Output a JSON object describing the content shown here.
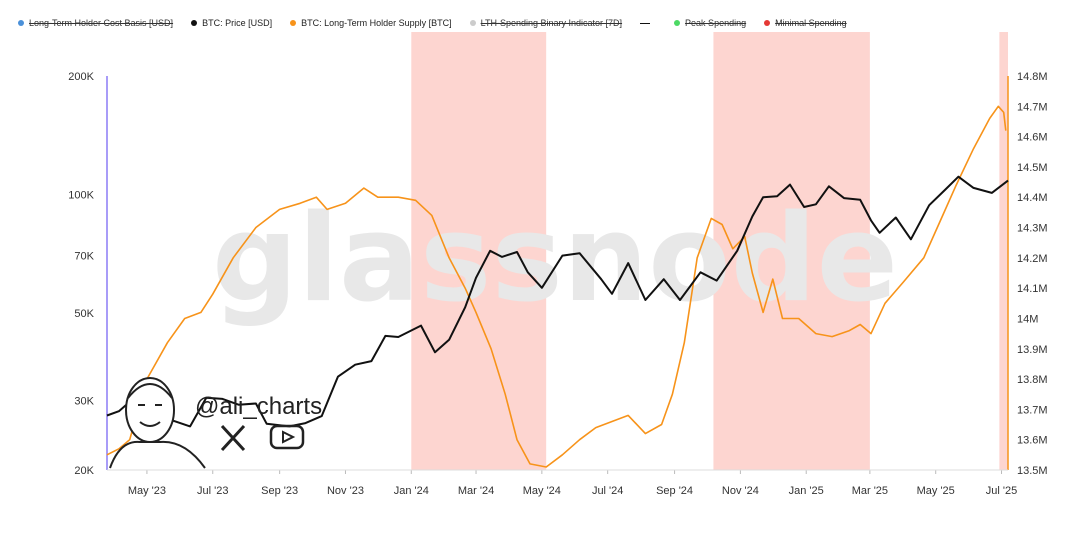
{
  "legend": {
    "items": [
      {
        "label": "Long-Term Holder Cost Basis [USD]",
        "color": "#4a90d9",
        "marker": "dot",
        "active": false
      },
      {
        "label": "BTC: Price [USD]",
        "color": "#111111",
        "marker": "dot",
        "active": true
      },
      {
        "label": "BTC: Long-Term Holder Supply [BTC]",
        "color": "#f7931a",
        "marker": "dot",
        "active": true
      },
      {
        "label": "LTH-Spending Binary Indicator [7D]",
        "color": "#cccccc",
        "marker": "dot",
        "active": false
      },
      {
        "label": "",
        "color": "#111111",
        "marker": "dash",
        "active": true
      },
      {
        "label": "Peak Spending",
        "color": "#4cd964",
        "marker": "dot",
        "active": false
      },
      {
        "label": "Minimal Spending",
        "color": "#e53935",
        "marker": "dot",
        "active": false
      }
    ]
  },
  "watermark": "glassnode",
  "author": {
    "handle": "@ali_charts",
    "icons": [
      "x-logo-icon",
      "youtube-icon"
    ]
  },
  "chart_data": {
    "type": "line",
    "x_range": [
      "2023-03-25",
      "2025-07-07"
    ],
    "x_ticks": [
      {
        "date": "2023-05-01",
        "label": "May '23"
      },
      {
        "date": "2023-07-01",
        "label": "Jul '23"
      },
      {
        "date": "2023-09-01",
        "label": "Sep '23"
      },
      {
        "date": "2023-11-01",
        "label": "Nov '23"
      },
      {
        "date": "2024-01-01",
        "label": "Jan '24"
      },
      {
        "date": "2024-03-01",
        "label": "Mar '24"
      },
      {
        "date": "2024-05-01",
        "label": "May '24"
      },
      {
        "date": "2024-07-01",
        "label": "Jul '24"
      },
      {
        "date": "2024-09-01",
        "label": "Sep '24"
      },
      {
        "date": "2024-11-01",
        "label": "Nov '24"
      },
      {
        "date": "2025-01-01",
        "label": "Jan '25"
      },
      {
        "date": "2025-03-01",
        "label": "Mar '25"
      },
      {
        "date": "2025-05-01",
        "label": "May '25"
      },
      {
        "date": "2025-07-01",
        "label": "Jul '25"
      }
    ],
    "y_left": {
      "scale": "log",
      "range": [
        20000,
        200000
      ],
      "ticks": [
        {
          "value": 20000,
          "label": "20K"
        },
        {
          "value": 30000,
          "label": "30K"
        },
        {
          "value": 50000,
          "label": "50K"
        },
        {
          "value": 70000,
          "label": "70K"
        },
        {
          "value": 100000,
          "label": "100K"
        },
        {
          "value": 200000,
          "label": "200K"
        }
      ]
    },
    "y_right": {
      "scale": "linear",
      "range": [
        13500000,
        14800000
      ],
      "ticks": [
        {
          "value": 13500000,
          "label": "13.5M"
        },
        {
          "value": 13600000,
          "label": "13.6M"
        },
        {
          "value": 13700000,
          "label": "13.7M"
        },
        {
          "value": 13800000,
          "label": "13.8M"
        },
        {
          "value": 13900000,
          "label": "13.9M"
        },
        {
          "value": 14000000,
          "label": "14M"
        },
        {
          "value": 14100000,
          "label": "14.1M"
        },
        {
          "value": 14200000,
          "label": "14.2M"
        },
        {
          "value": 14300000,
          "label": "14.3M"
        },
        {
          "value": 14400000,
          "label": "14.4M"
        },
        {
          "value": 14500000,
          "label": "14.5M"
        },
        {
          "value": 14600000,
          "label": "14.6M"
        },
        {
          "value": 14700000,
          "label": "14.7M"
        },
        {
          "value": 14800000,
          "label": "14.8M"
        }
      ]
    },
    "shaded_periods": [
      {
        "start": "2024-01-01",
        "end": "2024-05-05",
        "color": "#fdd5d0"
      },
      {
        "start": "2024-10-07",
        "end": "2025-03-01",
        "color": "#fdd5d0"
      },
      {
        "start": "2025-06-29",
        "end": "2025-07-07",
        "color": "#fdd5d0"
      }
    ],
    "series": [
      {
        "name": "BTC: Price [USD]",
        "axis": "left",
        "color": "#111111",
        "points": [
          [
            "2023-03-25",
            27500
          ],
          [
            "2023-04-05",
            28200
          ],
          [
            "2023-04-15",
            29800
          ],
          [
            "2023-04-25",
            27800
          ],
          [
            "2023-05-10",
            27300
          ],
          [
            "2023-05-25",
            26700
          ],
          [
            "2023-06-10",
            25800
          ],
          [
            "2023-06-25",
            30500
          ],
          [
            "2023-07-10",
            30300
          ],
          [
            "2023-07-25",
            29300
          ],
          [
            "2023-08-10",
            29500
          ],
          [
            "2023-08-20",
            26200
          ],
          [
            "2023-09-10",
            25800
          ],
          [
            "2023-09-25",
            26300
          ],
          [
            "2023-10-10",
            27400
          ],
          [
            "2023-10-25",
            34500
          ],
          [
            "2023-11-10",
            37000
          ],
          [
            "2023-11-25",
            37800
          ],
          [
            "2023-12-08",
            43800
          ],
          [
            "2023-12-20",
            43500
          ],
          [
            "2024-01-10",
            46500
          ],
          [
            "2024-01-23",
            39800
          ],
          [
            "2024-02-05",
            42800
          ],
          [
            "2024-02-20",
            51800
          ],
          [
            "2024-03-01",
            61500
          ],
          [
            "2024-03-14",
            72000
          ],
          [
            "2024-03-25",
            69500
          ],
          [
            "2024-04-08",
            71500
          ],
          [
            "2024-04-18",
            63500
          ],
          [
            "2024-05-01",
            58000
          ],
          [
            "2024-05-20",
            70000
          ],
          [
            "2024-06-05",
            71000
          ],
          [
            "2024-06-25",
            61000
          ],
          [
            "2024-07-05",
            56000
          ],
          [
            "2024-07-20",
            67000
          ],
          [
            "2024-08-05",
            54000
          ],
          [
            "2024-08-22",
            61000
          ],
          [
            "2024-09-06",
            54000
          ],
          [
            "2024-09-25",
            63500
          ],
          [
            "2024-10-10",
            60500
          ],
          [
            "2024-10-29",
            72000
          ],
          [
            "2024-11-12",
            88000
          ],
          [
            "2024-11-22",
            98500
          ],
          [
            "2024-12-05",
            99000
          ],
          [
            "2024-12-17",
            106000
          ],
          [
            "2024-12-30",
            93000
          ],
          [
            "2025-01-10",
            94500
          ],
          [
            "2025-01-22",
            105000
          ],
          [
            "2025-02-05",
            98000
          ],
          [
            "2025-02-20",
            97000
          ],
          [
            "2025-03-02",
            86000
          ],
          [
            "2025-03-10",
            80000
          ],
          [
            "2025-03-25",
            87500
          ],
          [
            "2025-04-08",
            77000
          ],
          [
            "2025-04-25",
            94000
          ],
          [
            "2025-05-10",
            103000
          ],
          [
            "2025-05-22",
            111000
          ],
          [
            "2025-06-05",
            104000
          ],
          [
            "2025-06-22",
            101000
          ],
          [
            "2025-07-07",
            108500
          ]
        ]
      },
      {
        "name": "BTC: Long-Term Holder Supply [BTC]",
        "axis": "right",
        "color": "#f7931a",
        "points": [
          [
            "2023-03-25",
            13550000
          ],
          [
            "2023-04-05",
            13570000
          ],
          [
            "2023-04-15",
            13600000
          ],
          [
            "2023-05-01",
            13800000
          ],
          [
            "2023-05-20",
            13920000
          ],
          [
            "2023-06-05",
            14000000
          ],
          [
            "2023-06-20",
            14020000
          ],
          [
            "2023-07-01",
            14080000
          ],
          [
            "2023-07-20",
            14200000
          ],
          [
            "2023-08-10",
            14300000
          ],
          [
            "2023-09-01",
            14360000
          ],
          [
            "2023-09-20",
            14380000
          ],
          [
            "2023-10-05",
            14400000
          ],
          [
            "2023-10-15",
            14360000
          ],
          [
            "2023-11-01",
            14380000
          ],
          [
            "2023-11-18",
            14430000
          ],
          [
            "2023-12-01",
            14400000
          ],
          [
            "2023-12-20",
            14400000
          ],
          [
            "2024-01-05",
            14390000
          ],
          [
            "2024-01-20",
            14340000
          ],
          [
            "2024-02-05",
            14200000
          ],
          [
            "2024-02-20",
            14100000
          ],
          [
            "2024-03-01",
            14020000
          ],
          [
            "2024-03-15",
            13900000
          ],
          [
            "2024-03-28",
            13750000
          ],
          [
            "2024-04-08",
            13600000
          ],
          [
            "2024-04-20",
            13520000
          ],
          [
            "2024-05-05",
            13510000
          ],
          [
            "2024-05-20",
            13550000
          ],
          [
            "2024-06-05",
            13600000
          ],
          [
            "2024-06-20",
            13640000
          ],
          [
            "2024-07-05",
            13660000
          ],
          [
            "2024-07-20",
            13680000
          ],
          [
            "2024-08-05",
            13620000
          ],
          [
            "2024-08-20",
            13650000
          ],
          [
            "2024-08-30",
            13750000
          ],
          [
            "2024-09-10",
            13920000
          ],
          [
            "2024-09-22",
            14200000
          ],
          [
            "2024-10-05",
            14330000
          ],
          [
            "2024-10-15",
            14310000
          ],
          [
            "2024-10-25",
            14230000
          ],
          [
            "2024-11-05",
            14270000
          ],
          [
            "2024-11-12",
            14150000
          ],
          [
            "2024-11-22",
            14020000
          ],
          [
            "2024-12-01",
            14130000
          ],
          [
            "2024-12-10",
            14000000
          ],
          [
            "2024-12-25",
            14000000
          ],
          [
            "2025-01-10",
            13950000
          ],
          [
            "2025-01-25",
            13940000
          ],
          [
            "2025-02-10",
            13960000
          ],
          [
            "2025-02-20",
            13980000
          ],
          [
            "2025-03-02",
            13950000
          ],
          [
            "2025-03-15",
            14050000
          ],
          [
            "2025-04-01",
            14120000
          ],
          [
            "2025-04-20",
            14200000
          ],
          [
            "2025-05-05",
            14320000
          ],
          [
            "2025-05-20",
            14440000
          ],
          [
            "2025-06-05",
            14560000
          ],
          [
            "2025-06-20",
            14660000
          ],
          [
            "2025-06-28",
            14700000
          ],
          [
            "2025-07-03",
            14680000
          ],
          [
            "2025-07-05",
            14620000
          ]
        ]
      }
    ]
  }
}
